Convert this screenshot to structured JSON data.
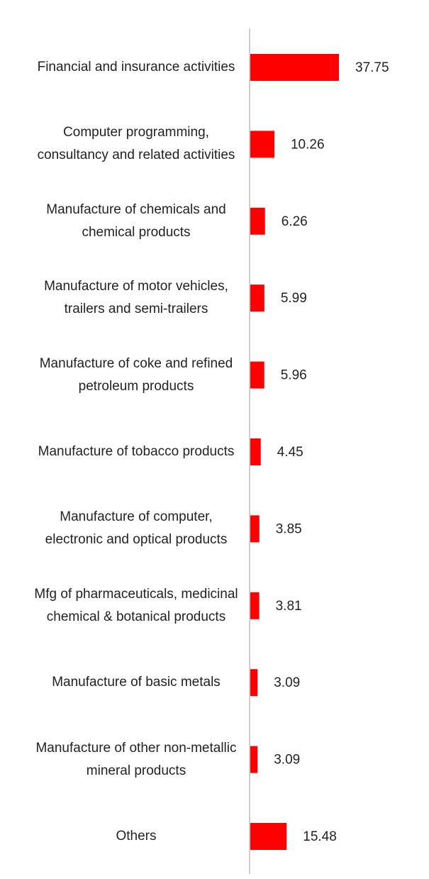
{
  "chart_data": {
    "type": "bar",
    "orientation": "horizontal",
    "categories": [
      "Financial and insurance activities",
      "Computer programming, consultancy and related activities",
      "Manufacture of chemicals and chemical products",
      "Manufacture of motor vehicles, trailers and semi-trailers",
      "Manufacture of coke and refined petroleum products",
      "Manufacture of tobacco products",
      "Manufacture of computer, electronic and optical products",
      "Mfg of pharmaceuticals, medicinal chemical & botanical products",
      "Manufacture of basic metals",
      "Manufacture of other non-metallic mineral products",
      "Others"
    ],
    "values": [
      37.75,
      10.26,
      6.26,
      5.99,
      5.96,
      4.45,
      3.85,
      3.81,
      3.09,
      3.09,
      15.48
    ],
    "color": "#ff0000"
  }
}
